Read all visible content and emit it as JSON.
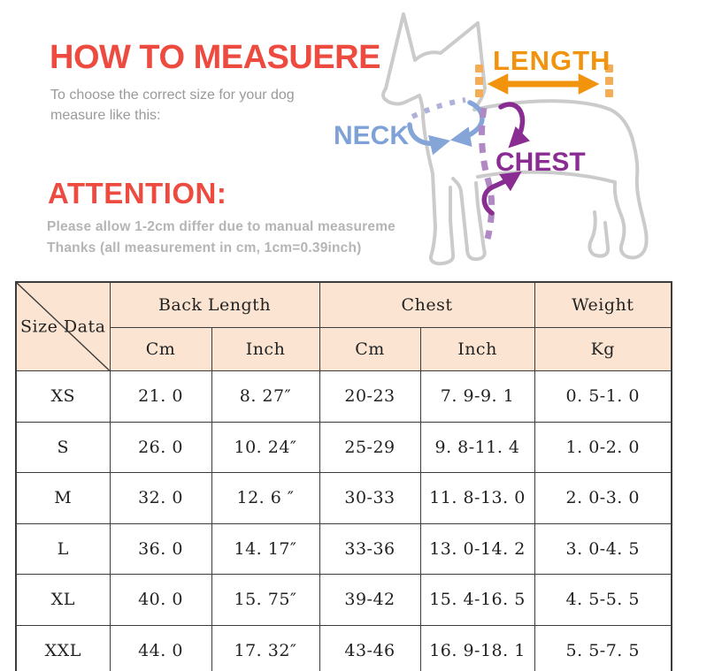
{
  "header": {
    "title": "HOW TO MEASUERE",
    "subtitle_line1": "To choose the correct size for your dog",
    "subtitle_line2": "measure like this:",
    "attention_title": "ATTENTION:",
    "attention_line1": "Please allow 1-2cm differ due to manual measureme",
    "attention_line2": "Thanks (all measurement in cm, 1cm=0.39inch)"
  },
  "diagram": {
    "labels": {
      "length": "LENGTH",
      "neck": "NECK",
      "chest": "CHEST"
    },
    "colors": {
      "length_orange": "#f2930d",
      "length_dash_orange": "#f4ad56",
      "neck_blue": "#7ea2d8",
      "collar_lavender": "#aeb2da",
      "chest_purple": "#8a2d93",
      "chest_dash_purple": "#b088c4",
      "dog_outline_gray": "#cbcbcb"
    }
  },
  "table": {
    "corner_label": "Size Data",
    "header_bg": "#fbe5d2",
    "groups": [
      {
        "label": "Back Length",
        "cols": [
          "Cm",
          "Inch"
        ]
      },
      {
        "label": "Chest",
        "cols": [
          "Cm",
          "Inch"
        ]
      },
      {
        "label": "Weight",
        "cols": [
          "Kg"
        ]
      }
    ],
    "rows": [
      {
        "size": "XS",
        "cells": [
          "21. 0",
          "8. 27″",
          "20-23",
          "7. 9-9. 1",
          "0. 5-1. 0"
        ]
      },
      {
        "size": "S",
        "cells": [
          "26. 0",
          "10. 24″",
          "25-29",
          "9. 8-11. 4",
          "1. 0-2. 0"
        ]
      },
      {
        "size": "M",
        "cells": [
          "32. 0",
          "12. 6 ″",
          "30-33",
          "11. 8-13. 0",
          "2. 0-3. 0"
        ]
      },
      {
        "size": "L",
        "cells": [
          "36. 0",
          "14. 17″",
          "33-36",
          "13. 0-14. 2",
          "3. 0-4. 5"
        ]
      },
      {
        "size": "XL",
        "cells": [
          "40. 0",
          "15. 75″",
          "39-42",
          "15. 4-16. 5",
          "4. 5-5. 5"
        ]
      },
      {
        "size": "XXL",
        "cells": [
          "44. 0",
          "17. 32″",
          "43-46",
          "16. 9-18. 1",
          "5. 5-7. 5"
        ]
      }
    ]
  }
}
